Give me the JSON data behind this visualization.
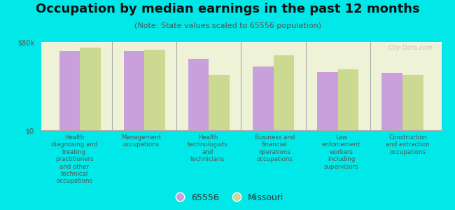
{
  "title": "Occupation by median earnings in the past 12 months",
  "subtitle": "(Note: State values scaled to 65556 population)",
  "categories": [
    "Health\ndiagnosing and\ntreating\npractitioners\nand other\ntechnical\noccupations",
    "Management\noccupations",
    "Health\ntechnologists\nand\ntechnicians",
    "Business and\nfinancial\noperations\noccupations",
    "Law\nenforcement\nworkers\nincluding\nsupervisors",
    "Construction\nand extraction\noccupations"
  ],
  "values_65556": [
    72000,
    72000,
    65000,
    58000,
    53000,
    52000
  ],
  "values_missouri": [
    75000,
    73000,
    50000,
    68000,
    55000,
    50000
  ],
  "color_65556": "#c9a0dc",
  "color_missouri": "#ccd990",
  "background_color": "#00e8e8",
  "plot_bg_color": "#eef3d8",
  "ylim": [
    0,
    80000
  ],
  "ytick_labels": [
    "$0",
    "$80k"
  ],
  "legend_label_65556": "65556",
  "legend_label_missouri": "Missouri",
  "title_fontsize": 13,
  "subtitle_fontsize": 8,
  "axis_label_fontsize": 7,
  "legend_fontsize": 9,
  "watermark": "City-Data.com"
}
